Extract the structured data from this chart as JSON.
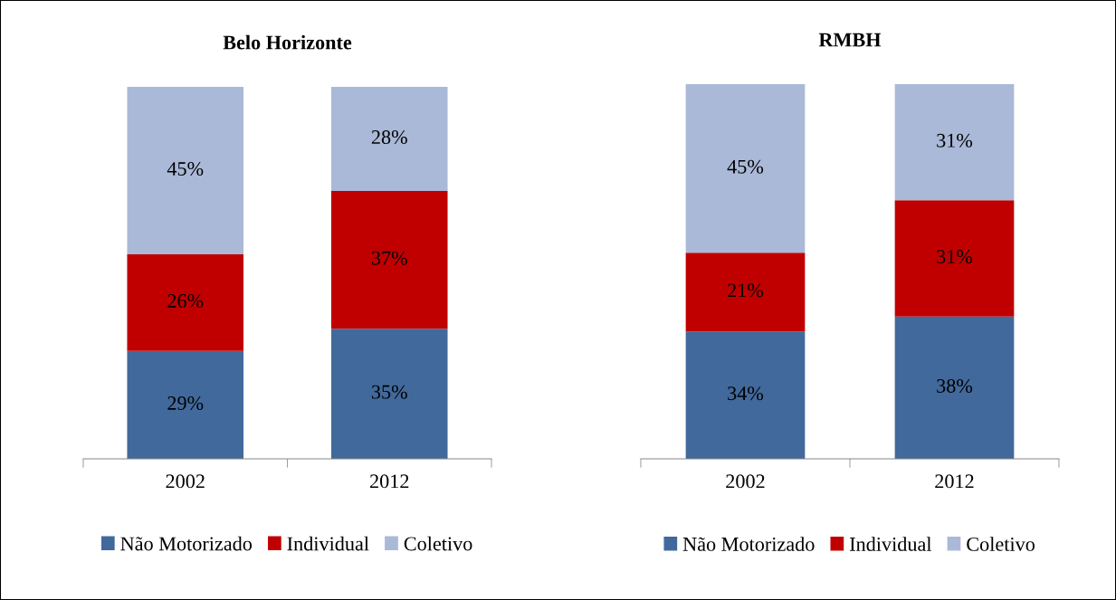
{
  "chart_data": [
    {
      "type": "bar",
      "title": "Belo Horizonte",
      "categories": [
        "2002",
        "2012"
      ],
      "stacked": true,
      "legend": "bottom",
      "grid": false,
      "series": [
        {
          "name": "Não Motorizado",
          "color": "#41699b",
          "values": [
            29,
            35
          ],
          "value_labels": [
            "29%",
            "35%"
          ]
        },
        {
          "name": "Individual",
          "color": "#c00000",
          "values": [
            26,
            37
          ],
          "value_labels": [
            "26%",
            "37%"
          ]
        },
        {
          "name": "Coletivo",
          "color": "#aab9d8",
          "values": [
            45,
            28
          ],
          "value_labels": [
            "45%",
            "28%"
          ]
        }
      ]
    },
    {
      "type": "bar",
      "title": "RMBH",
      "categories": [
        "2002",
        "2012"
      ],
      "stacked": true,
      "legend": "bottom",
      "grid": false,
      "series": [
        {
          "name": "Não Motorizado",
          "color": "#41699b",
          "values": [
            34,
            38
          ],
          "value_labels": [
            "34%",
            "38%"
          ]
        },
        {
          "name": "Individual",
          "color": "#c00000",
          "values": [
            21,
            31
          ],
          "value_labels": [
            "21%",
            "31%"
          ]
        },
        {
          "name": "Coletivo",
          "color": "#aab9d8",
          "values": [
            45,
            31
          ],
          "value_labels": [
            "45%",
            "31%"
          ]
        }
      ]
    }
  ]
}
